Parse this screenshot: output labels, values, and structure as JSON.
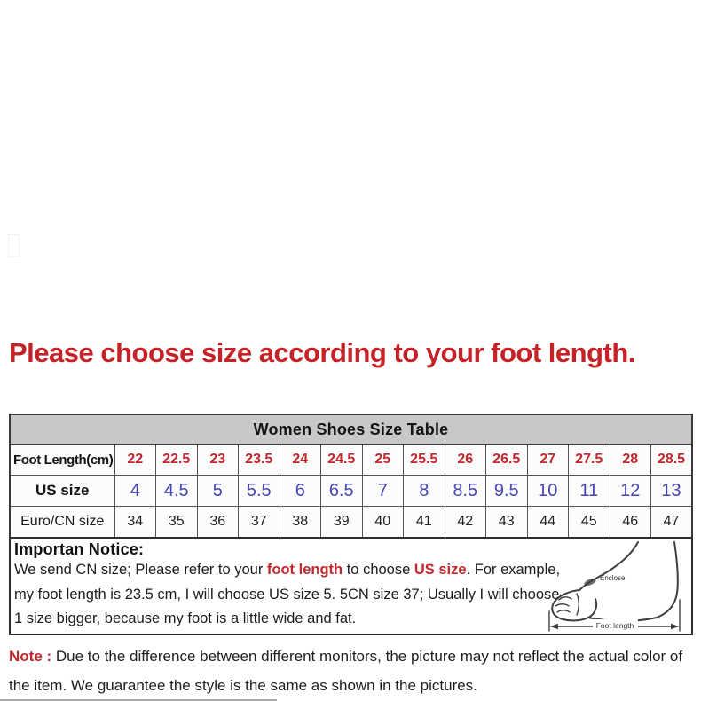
{
  "heading": "Please choose size according to your foot length.",
  "size_table": {
    "title": "Women Shoes Size Table",
    "rows": [
      {
        "label": "Foot Length(cm)",
        "values": [
          "22",
          "22.5",
          "23",
          "23.5",
          "24",
          "24.5",
          "25",
          "25.5",
          "26",
          "26.5",
          "27",
          "27.5",
          "28",
          "28.5"
        ]
      },
      {
        "label": "US size",
        "values": [
          "4",
          "4.5",
          "5",
          "5.5",
          "6",
          "6.5",
          "7",
          "8",
          "8.5",
          "9.5",
          "10",
          "11",
          "12",
          "13"
        ]
      },
      {
        "label": "Euro/CN size",
        "values": [
          "34",
          "35",
          "36",
          "37",
          "38",
          "39",
          "40",
          "41",
          "42",
          "43",
          "44",
          "45",
          "46",
          "47"
        ]
      }
    ]
  },
  "notice": {
    "title": "Importan Notice:",
    "line1": {
      "t1": "We send CN size; Please refer to your ",
      "hl1": "foot length",
      "t2": " to choose ",
      "hl2": "US size",
      "t3": ". For example,"
    },
    "line2": "my foot length is 23.5 cm, I will choose US size 5. 5CN size 37; Usually I will choose",
    "line3": "1 size bigger, because my foot is a little wide and fat."
  },
  "foot_diagram": {
    "enclose_label": "Enclose",
    "foot_length_label": "Foot length"
  },
  "bottom_note": {
    "label": "Note :",
    "text": " Due to the difference between different monitors, the picture may not reflect the actual color of the item. We guarantee the style is the same as shown in the pictures."
  },
  "colors": {
    "heading_red": "#c52228",
    "value_red": "#c2272d",
    "value_blue": "#4646b4",
    "table_header_gray": "#c8c8c8"
  }
}
